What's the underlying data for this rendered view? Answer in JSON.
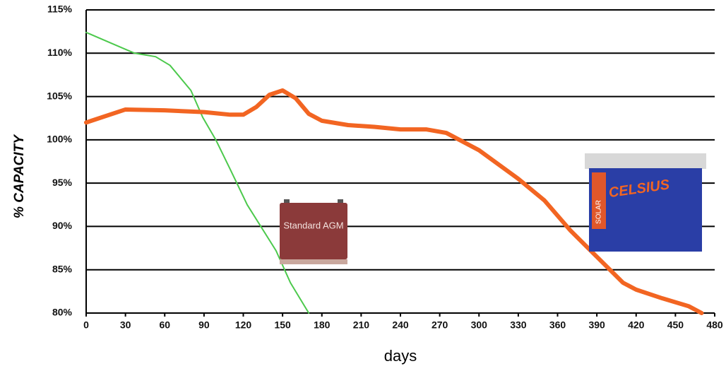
{
  "chart_data": {
    "type": "line",
    "ylabel": "% CAPACITY",
    "xlabel": "days",
    "xlim": [
      0,
      480
    ],
    "xticks": [
      0,
      30,
      60,
      90,
      120,
      150,
      180,
      210,
      240,
      270,
      300,
      330,
      360,
      390,
      420,
      450,
      480
    ],
    "ylim": [
      80,
      115
    ],
    "yticks": [
      {
        "value": 80,
        "label": "80%"
      },
      {
        "value": 85,
        "label": "85%"
      },
      {
        "value": 90,
        "label": "90%"
      },
      {
        "value": 95,
        "label": "95%"
      },
      {
        "value": 100,
        "label": "100%"
      },
      {
        "value": 105,
        "label": "105%"
      },
      {
        "value": 110,
        "label": "110%"
      },
      {
        "value": 115,
        "label": "115%"
      }
    ],
    "grid": true,
    "series": [
      {
        "color": "#4cc94c",
        "x": [
          0,
          20,
          37,
          53,
          64,
          80,
          89,
          99,
          110,
          123,
          145,
          156,
          170
        ],
        "values": [
          112.4,
          111.1,
          110,
          109.6,
          108.6,
          105.7,
          102.6,
          100,
          96.6,
          92.5,
          87.2,
          83.5,
          80
        ]
      },
      {
        "color": "#f26522",
        "x": [
          0,
          30,
          60,
          90,
          110,
          120,
          130,
          140,
          150,
          160,
          170,
          180,
          200,
          220,
          240,
          260,
          275,
          300,
          330,
          350,
          370,
          390,
          410,
          420,
          440,
          460,
          470
        ],
        "values": [
          102.0,
          103.5,
          103.4,
          103.2,
          102.9,
          102.9,
          103.8,
          105.2,
          105.7,
          104.8,
          103.0,
          102.2,
          101.7,
          101.5,
          101.2,
          101.2,
          100.8,
          98.8,
          95.5,
          93.0,
          89.5,
          86.5,
          83.5,
          82.7,
          81.7,
          80.8,
          80.0
        ]
      }
    ],
    "annotations": [
      "Standard AGM",
      "CELSIUS",
      "SOLAR"
    ]
  }
}
